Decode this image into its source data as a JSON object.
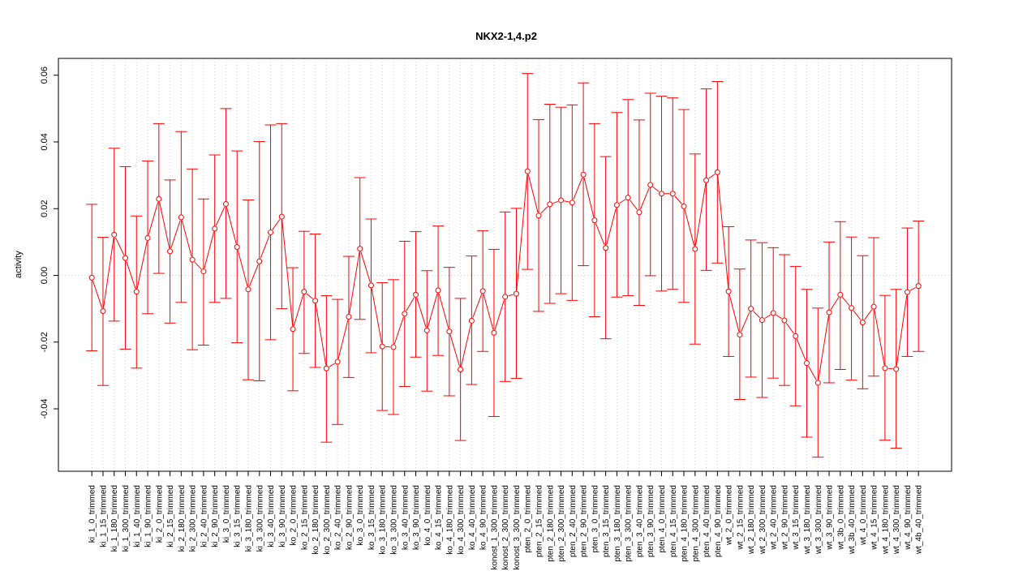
{
  "chart_data": {
    "type": "line",
    "title": "NKX2-1,4.p2",
    "xlabel": "",
    "ylabel": "activity",
    "ylim": [
      -0.059,
      0.0605
    ],
    "yticks": [
      -0.04,
      -0.02,
      0.0,
      0.02,
      0.04,
      0.06
    ],
    "ytick_labels": [
      "-0.04",
      "-0.02",
      "0.00",
      "0.02",
      "0.04",
      "0.06"
    ],
    "grid": true,
    "color": "#ff0000",
    "categories": [
      "ki_1_0_trimmed",
      "ki_1_15_trimmed",
      "ki_1_180_trimmed",
      "ki_1_300_trimmed",
      "ki_1_40_trimmed",
      "ki_1_90_trimmed",
      "ki_2_0_trimmed",
      "ki_2_15_trimmed",
      "ki_2_180_trimmed",
      "ki_2_300_trimmed",
      "ki_2_40_trimmed",
      "ki_2_90_trimmed",
      "ki_3_0_trimmed",
      "ki_3_15_trimmed",
      "ki_3_180_trimmed",
      "ki_3_300_trimmed",
      "ki_3_40_trimmed",
      "ki_3_90_trimmed",
      "ko_2_0_trimmed",
      "ko_2_15_trimmed",
      "ko_2_180_trimmed",
      "ko_2_300_trimmed",
      "ko_2_40_trimmed",
      "ko_2_90_trimmed",
      "ko_3_0_trimmed",
      "ko_3_15_trimmed",
      "ko_3_180_trimmed",
      "ko_3_300_trimmed",
      "ko_3_40_trimmed",
      "ko_3_90_trimmed",
      "ko_4_0_trimmed",
      "ko_4_15_trimmed",
      "ko_4_180_trimmed",
      "ko_4_300_trimmed",
      "ko_4_40_trimmed",
      "ko_4_90_trimmed",
      "konost_1_300_trimmed",
      "konost_2_300_trimmed",
      "konost_3_300_trimmed",
      "pten_2_0_trimmed",
      "pten_2_15_trimmed",
      "pten_2_180_trimmed",
      "pten_2_300_trimmed",
      "pten_2_40_trimmed",
      "pten_2_90_trimmed",
      "pten_3_0_trimmed",
      "pten_3_15_trimmed",
      "pten_3_180_trimmed",
      "pten_3_300_trimmed",
      "pten_3_40_trimmed",
      "pten_3_90_trimmed",
      "pten_4_0_trimmed",
      "pten_4_15_trimmed",
      "pten_4_180_trimmed",
      "pten_4_300_trimmed",
      "pten_4_40_trimmed",
      "pten_4_90_trimmed",
      "wt_2_0_trimmed",
      "wt_2_15_trimmed",
      "wt_2_180_trimmed",
      "wt_2_300_trimmed",
      "wt_2_40_trimmed",
      "wt_2_90_trimmed",
      "wt_3_15_trimmed",
      "wt_3_180_trimmed",
      "wt_3_300_trimmed",
      "wt_3_90_trimmed",
      "wt_3b_0_trimmed",
      "wt_3b_40_trimmed",
      "wt_4_0_trimmed",
      "wt_4_15_trimmed",
      "wt_4_180_trimmed",
      "wt_4_300_trimmed",
      "wt_4_90_trimmed",
      "wt_4b_40_trimmed"
    ],
    "values": [
      -0.0007,
      -0.0107,
      0.0122,
      0.0052,
      -0.0049,
      0.0112,
      0.0229,
      0.0072,
      0.0174,
      0.0047,
      0.0012,
      0.014,
      0.0214,
      0.0085,
      -0.0042,
      0.0042,
      0.0129,
      0.0176,
      -0.0161,
      -0.0049,
      -0.0076,
      -0.0279,
      -0.0259,
      -0.0124,
      0.008,
      -0.003,
      -0.0213,
      -0.0215,
      -0.0115,
      -0.0058,
      -0.0165,
      -0.0045,
      -0.0168,
      -0.0282,
      -0.0136,
      -0.0047,
      -0.0172,
      -0.0064,
      -0.0055,
      0.0312,
      0.0179,
      0.0213,
      0.0225,
      0.0218,
      0.0302,
      0.0165,
      0.0082,
      0.0211,
      0.0233,
      0.0189,
      0.0271,
      0.0245,
      0.0245,
      0.0207,
      0.0079,
      0.0285,
      0.0309,
      -0.0048,
      -0.0178,
      -0.01,
      -0.0134,
      -0.0113,
      -0.0135,
      -0.0182,
      -0.0263,
      -0.0322,
      -0.0111,
      -0.0058,
      -0.0098,
      -0.0141,
      -0.0094,
      -0.0278,
      -0.0281,
      -0.005,
      -0.0032
    ],
    "upper": [
      0.0213,
      0.0114,
      0.0381,
      0.0326,
      0.0178,
      0.0343,
      0.0455,
      0.0286,
      0.0431,
      0.0319,
      0.0229,
      0.0361,
      0.05,
      0.0373,
      0.0226,
      0.0401,
      0.0451,
      0.0455,
      0.0023,
      0.0132,
      0.0124,
      -0.0061,
      -0.0072,
      0.0057,
      0.0293,
      0.0169,
      -0.0022,
      -0.0013,
      0.0102,
      0.0131,
      0.0014,
      0.0148,
      0.0024,
      -0.0069,
      0.0058,
      0.0134,
      0.0078,
      0.019,
      0.0201,
      0.0605,
      0.0467,
      0.0513,
      0.0504,
      0.0511,
      0.0577,
      0.0455,
      0.0356,
      0.0488,
      0.0527,
      0.0466,
      0.0546,
      0.0537,
      0.0532,
      0.0497,
      0.0364,
      0.0559,
      0.0581,
      0.0146,
      0.0019,
      0.0106,
      0.0098,
      0.0083,
      0.0062,
      0.0027,
      -0.0042,
      -0.0098,
      0.01,
      0.0161,
      0.0115,
      0.0059,
      0.0113,
      -0.006,
      -0.0042,
      0.0142,
      0.0163
    ],
    "lower": [
      -0.0226,
      -0.033,
      -0.0137,
      -0.0221,
      -0.0278,
      -0.0115,
      0.0006,
      -0.0143,
      -0.0081,
      -0.0223,
      -0.0209,
      -0.0081,
      -0.0069,
      -0.0202,
      -0.0313,
      -0.0316,
      -0.0193,
      -0.01,
      -0.0346,
      -0.0234,
      -0.0276,
      -0.05,
      -0.0447,
      -0.0306,
      -0.0132,
      -0.0232,
      -0.0405,
      -0.0417,
      -0.0333,
      -0.0245,
      -0.0347,
      -0.024,
      -0.0361,
      -0.0495,
      -0.0327,
      -0.0228,
      -0.0423,
      -0.0318,
      -0.0309,
      0.0018,
      -0.0108,
      -0.0084,
      -0.0055,
      -0.0075,
      0.0029,
      -0.0124,
      -0.019,
      -0.0065,
      -0.0061,
      -0.009,
      -0.0001,
      -0.0047,
      -0.0042,
      -0.0081,
      -0.0206,
      0.0015,
      0.0037,
      -0.0243,
      -0.0372,
      -0.0305,
      -0.0366,
      -0.0308,
      -0.033,
      -0.0391,
      -0.0485,
      -0.0545,
      -0.0322,
      -0.0282,
      -0.0314,
      -0.034,
      -0.0302,
      -0.0494,
      -0.0518,
      -0.0243,
      -0.0228
    ]
  }
}
